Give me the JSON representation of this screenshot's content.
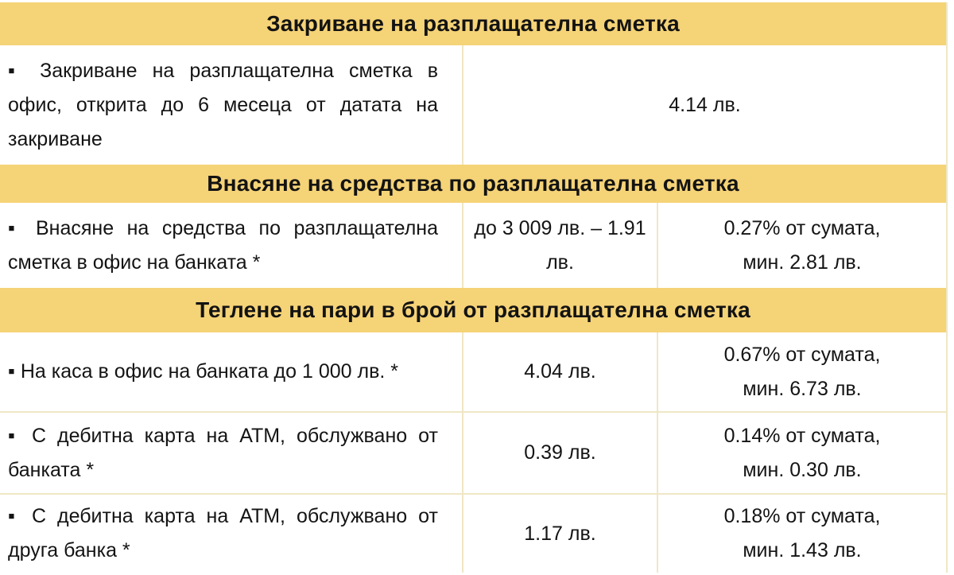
{
  "bullet": "▪",
  "colors": {
    "header_bg": "#f5d377",
    "border": "#efe7c4",
    "text": "#141414",
    "row_bg": "#ffffff"
  },
  "table": {
    "sections": [
      {
        "header": "Закриване на разплащателна сметка",
        "rows": [
          {
            "label": "Закриване на разплащателна сметка в офис, открита до 6 месеца от датата на закриване",
            "fee": "4.14 лв."
          }
        ]
      },
      {
        "header": "Внасяне на средства по разплащателна сметка",
        "rows": [
          {
            "label": "Внасяне на средства по разплащателна сметка в офис на банката *",
            "fee_fixed": "до 3 009 лв. – 1.91 лв.",
            "fee_percent": "0.27% от сумата, мин. 2.81 лв."
          }
        ]
      },
      {
        "header": "Теглене на пари в брой от разплащателна сметка",
        "rows": [
          {
            "label": "На каса в офис на банката до 1 000 лв. *",
            "fee_fixed": "4.04 лв.",
            "fee_percent": "0.67% от сумата, мин. 6.73 лв."
          },
          {
            "label": "С дебитна карта на АТМ, обслужвано от банката *",
            "fee_fixed": "0.39 лв.",
            "fee_percent": "0.14% от сумата, мин. 0.30 лв."
          },
          {
            "label": "С дебитна карта на АТМ, обслужвано от друга банка *",
            "fee_fixed": "1.17 лв.",
            "fee_percent": "0.18% от сумата, мин. 1.43 лв."
          }
        ]
      }
    ]
  }
}
